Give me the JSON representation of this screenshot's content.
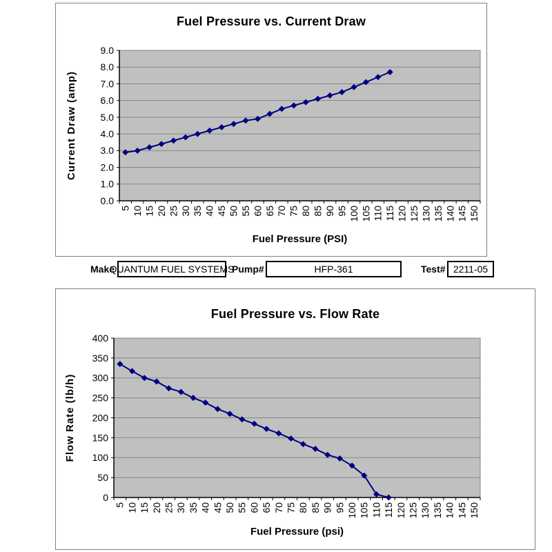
{
  "colors": {
    "series_line": "#000080",
    "marker": "#000080",
    "plot_background": "#c0c0c0",
    "gridline": "#868686",
    "axis": "#000000"
  },
  "form": {
    "fields": [
      {
        "label": "Make",
        "value": "QUANTUM FUEL SYSTEMS"
      },
      {
        "label": "Pump#",
        "value": "HFP-361"
      },
      {
        "label": "Test#",
        "value": "2211-05"
      }
    ]
  },
  "chart_data": [
    {
      "type": "line",
      "title": "Fuel Pressure vs. Current Draw",
      "xlabel": "Fuel Pressure (PSI)",
      "ylabel": "Current Draw (amp)",
      "legend_position": "none",
      "grid": true,
      "marker": "diamond",
      "x_tick_labels": [
        "5",
        "10",
        "15",
        "20",
        "25",
        "30",
        "35",
        "40",
        "45",
        "50",
        "55",
        "60",
        "65",
        "70",
        "75",
        "80",
        "85",
        "90",
        "95",
        "100",
        "105",
        "110",
        "115",
        "120",
        "125",
        "130",
        "135",
        "140",
        "145",
        "150"
      ],
      "x": [
        5,
        10,
        15,
        20,
        25,
        30,
        35,
        40,
        45,
        50,
        55,
        60,
        65,
        70,
        75,
        80,
        85,
        90,
        95,
        100,
        105,
        110,
        115
      ],
      "values": [
        2.9,
        3.0,
        3.2,
        3.4,
        3.6,
        3.8,
        4.0,
        4.2,
        4.4,
        4.6,
        4.8,
        4.9,
        5.2,
        5.5,
        5.7,
        5.9,
        6.1,
        6.3,
        6.5,
        6.8,
        7.1,
        7.4,
        7.7
      ],
      "ylim": [
        0,
        9
      ],
      "y_tick_step": 1,
      "y_tick_labels": [
        "9.0",
        "8.0",
        "7.0",
        "6.0",
        "5.0",
        "4.0",
        "3.0",
        "2.0",
        "1.0",
        "0.0"
      ]
    },
    {
      "type": "line",
      "title": "Fuel Pressure vs. Flow Rate",
      "xlabel": "Fuel Pressure (psi)",
      "ylabel": "Flow Rate (lb/h)",
      "legend_position": "none",
      "grid": true,
      "marker": "diamond",
      "x_tick_labels": [
        "5",
        "10",
        "15",
        "20",
        "25",
        "30",
        "35",
        "40",
        "45",
        "50",
        "55",
        "60",
        "65",
        "70",
        "75",
        "80",
        "85",
        "90",
        "95",
        "100",
        "105",
        "110",
        "115",
        "120",
        "125",
        "130",
        "135",
        "140",
        "145",
        "150"
      ],
      "x": [
        5,
        10,
        15,
        20,
        25,
        30,
        35,
        40,
        45,
        50,
        55,
        60,
        65,
        70,
        75,
        80,
        85,
        90,
        95,
        100,
        105,
        110,
        115
      ],
      "values": [
        335,
        317,
        300,
        291,
        274,
        265,
        250,
        238,
        222,
        210,
        196,
        185,
        172,
        161,
        148,
        134,
        122,
        107,
        98,
        80,
        55,
        8,
        0
      ],
      "ylim": [
        0,
        400
      ],
      "y_tick_step": 50,
      "y_tick_labels": [
        "400",
        "350",
        "300",
        "250",
        "200",
        "150",
        "100",
        "50",
        "0"
      ]
    }
  ]
}
